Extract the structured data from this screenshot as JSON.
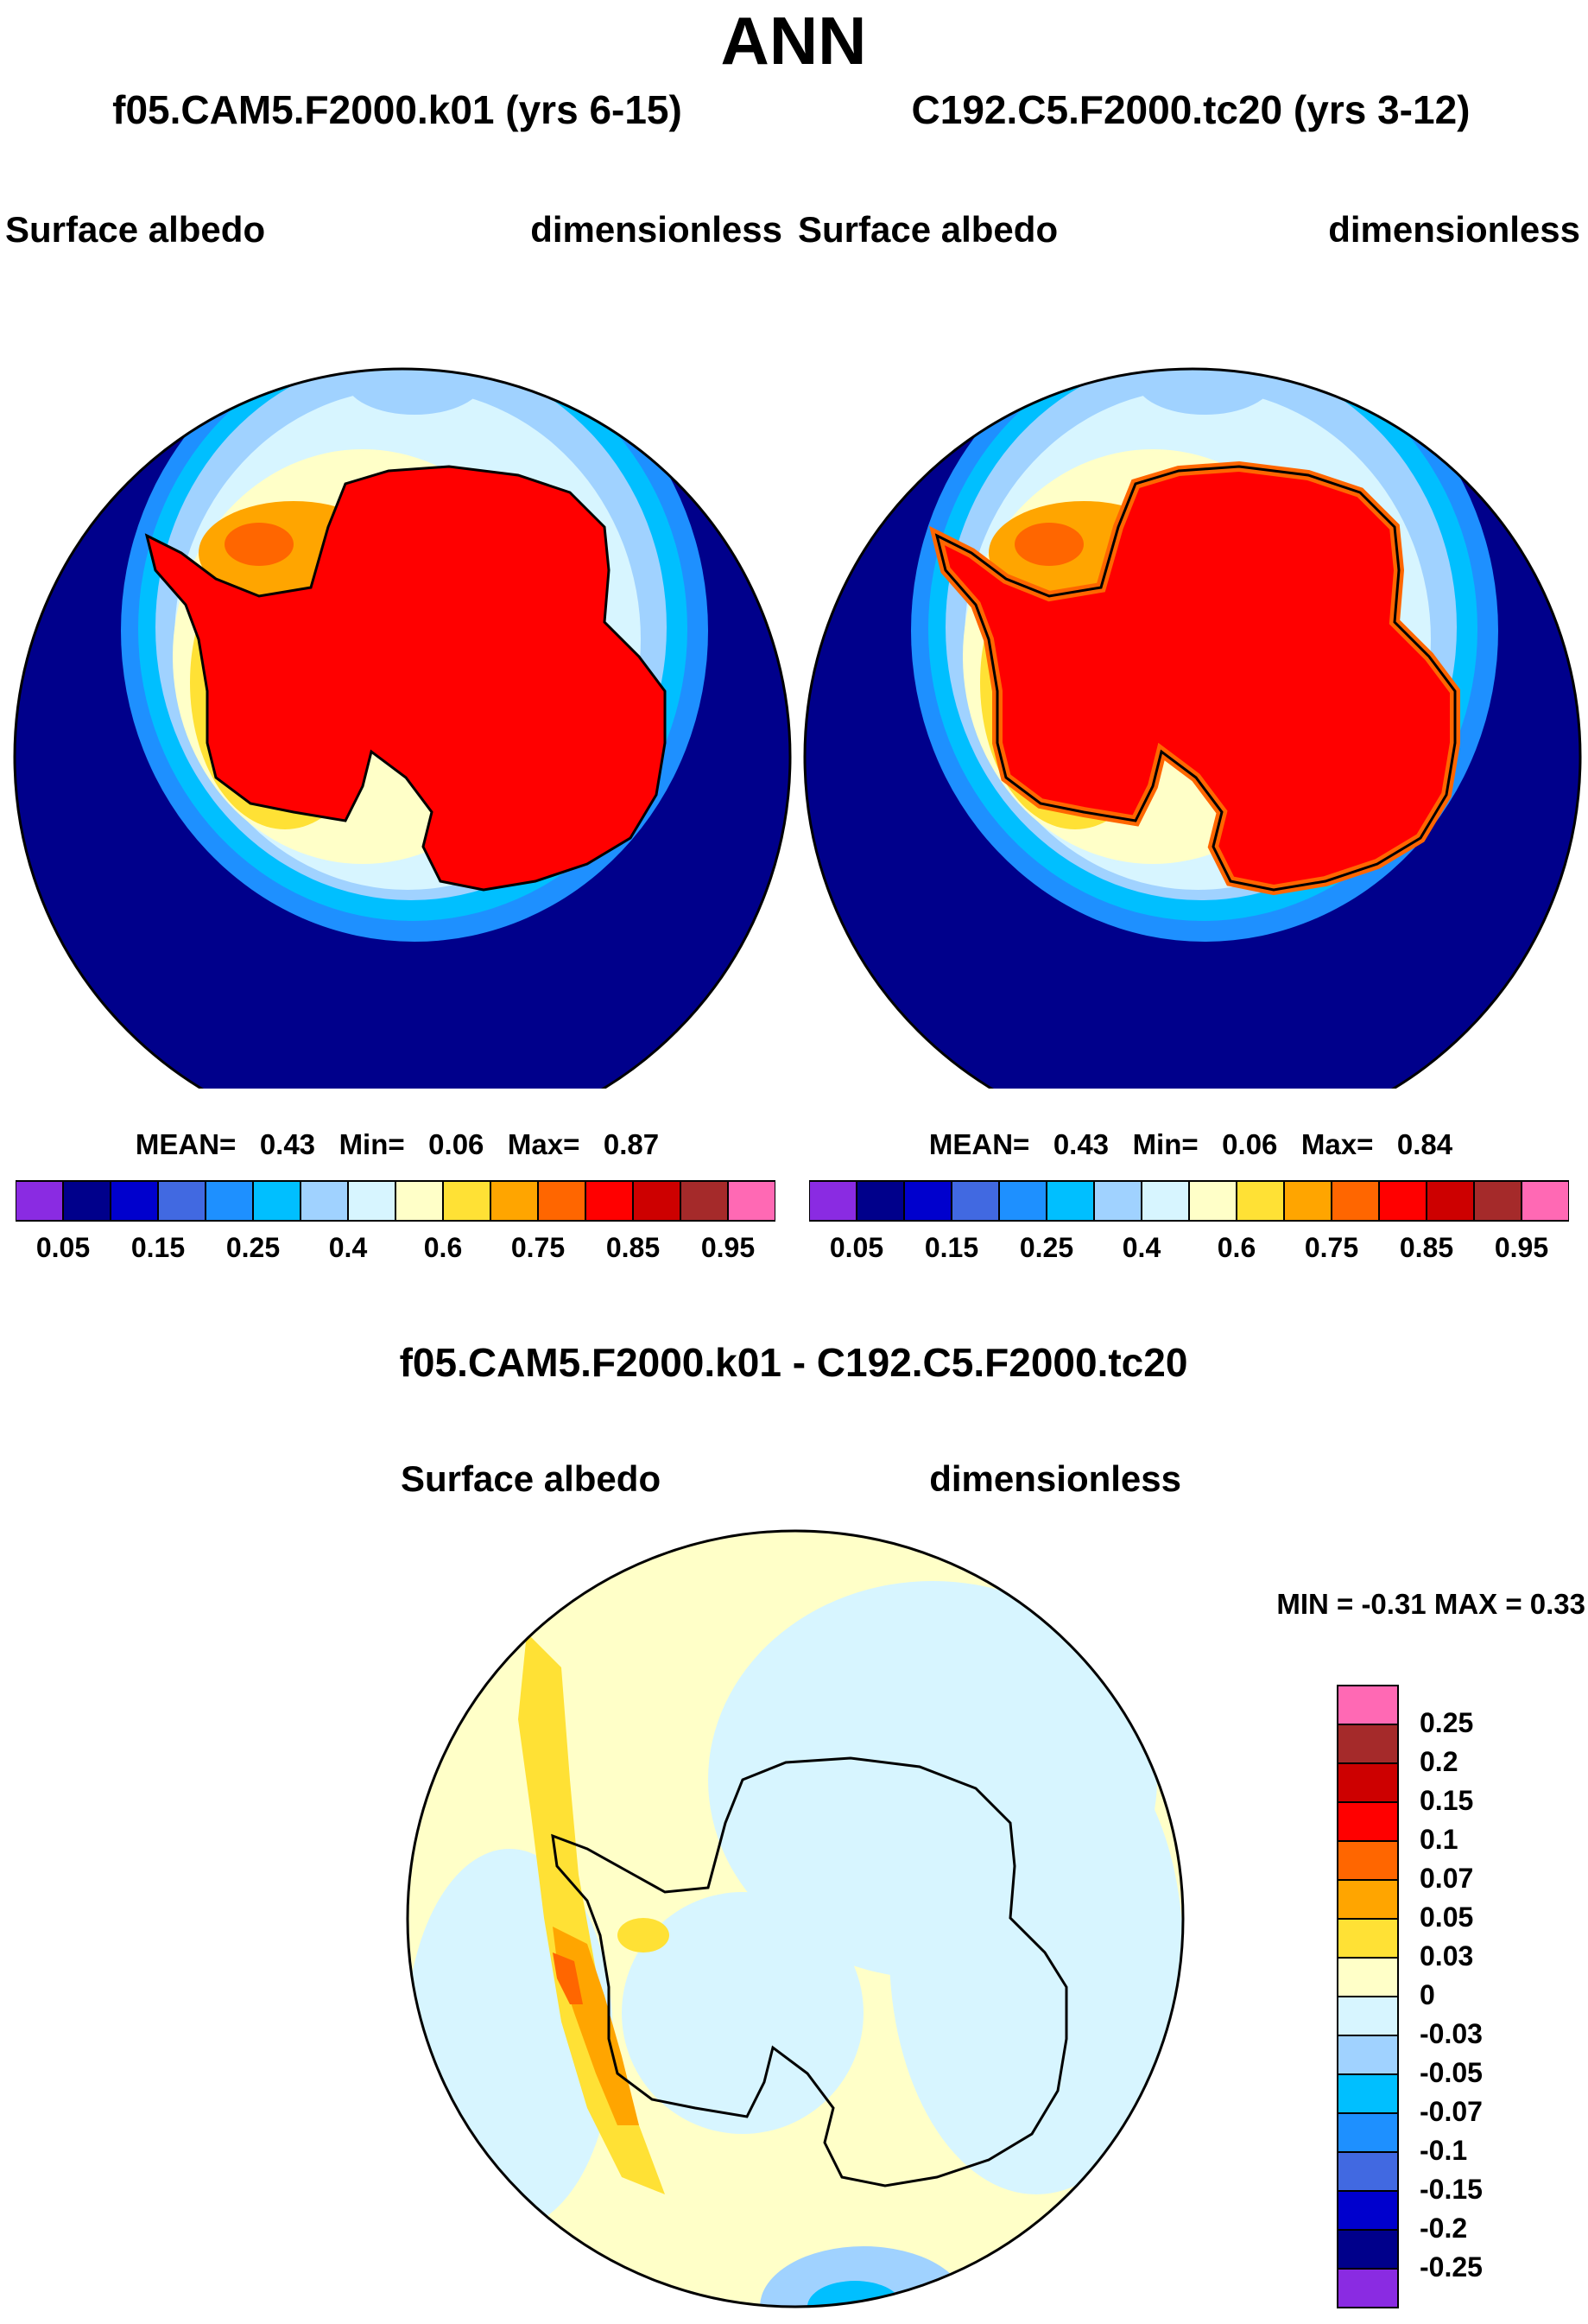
{
  "page": {
    "title": "ANN"
  },
  "colors": {
    "ocean_dark": "#00008b",
    "continent": "#ff0000",
    "outline": "#000000"
  },
  "panels": [
    {
      "title": "f05.CAM5.F2000.k01 (yrs 6-15)",
      "left_label": "Surface albedo",
      "right_label": "dimensionless",
      "stats": {
        "mean_label": "MEAN=",
        "mean": "0.43",
        "min_label": "Min=",
        "min": "0.06",
        "max_label": "Max=",
        "max": "0.87"
      }
    },
    {
      "title": "C192.C5.F2000.tc20 (yrs 3-12)",
      "left_label": "Surface albedo",
      "right_label": "dimensionless",
      "stats": {
        "mean_label": "MEAN=",
        "mean": "0.43",
        "min_label": "Min=",
        "min": "0.06",
        "max_label": "Max=",
        "max": "0.84"
      }
    }
  ],
  "colorbar": {
    "colors": [
      "#8a2be2",
      "#00008b",
      "#0000cd",
      "#4169e1",
      "#1e90ff",
      "#00bfff",
      "#a0d2ff",
      "#d7f5ff",
      "#ffffc8",
      "#ffe135",
      "#ffa500",
      "#ff6600",
      "#ff0000",
      "#cd0000",
      "#a52a2a",
      "#ff69b4"
    ],
    "labels": [
      "0.05",
      "0.15",
      "0.25",
      "0.4",
      "0.6",
      "0.75",
      "0.85",
      "0.95"
    ]
  },
  "diff": {
    "title": "f05.CAM5.F2000.k01 - C192.C5.F2000.tc20",
    "left_label": "Surface albedo",
    "right_label": "dimensionless",
    "stats": "MIN =  -0.31 MAX =   0.33",
    "colorbar": {
      "colors": [
        "#ff69b4",
        "#a52a2a",
        "#cd0000",
        "#ff0000",
        "#ff6600",
        "#ffa500",
        "#ffe135",
        "#ffffc8",
        "#d7f5ff",
        "#a0d2ff",
        "#00bfff",
        "#1e90ff",
        "#4169e1",
        "#0000cd",
        "#00008b",
        "#8a2be2"
      ],
      "labels": [
        "0.25",
        "0.2",
        "0.15",
        "0.1",
        "0.07",
        "0.05",
        "0.03",
        "0",
        "-0.03",
        "-0.05",
        "-0.07",
        "-0.1",
        "-0.15",
        "-0.2",
        "-0.25"
      ]
    }
  }
}
